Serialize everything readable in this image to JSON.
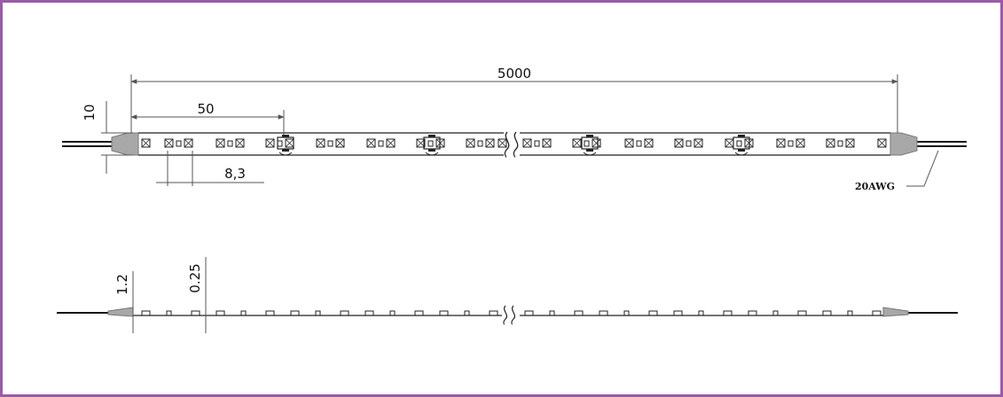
{
  "colors": {
    "frame": "#9a5aa8",
    "line": "#222222",
    "dim_line": "#555555",
    "end_cap": "#a8a8a8",
    "wire": "#111111"
  },
  "top_view": {
    "dimensions": {
      "total_length": "5000",
      "segment_length": "50",
      "width": "10",
      "led_pitch": "8,3"
    },
    "wire_label": "20AWG",
    "led_chip_icon": "smd-led-chip-icon",
    "resistor_icon": "resistor-icon"
  },
  "side_view": {
    "dimensions": {
      "thickness": "1.2",
      "pcb_thickness": "0.25"
    }
  }
}
